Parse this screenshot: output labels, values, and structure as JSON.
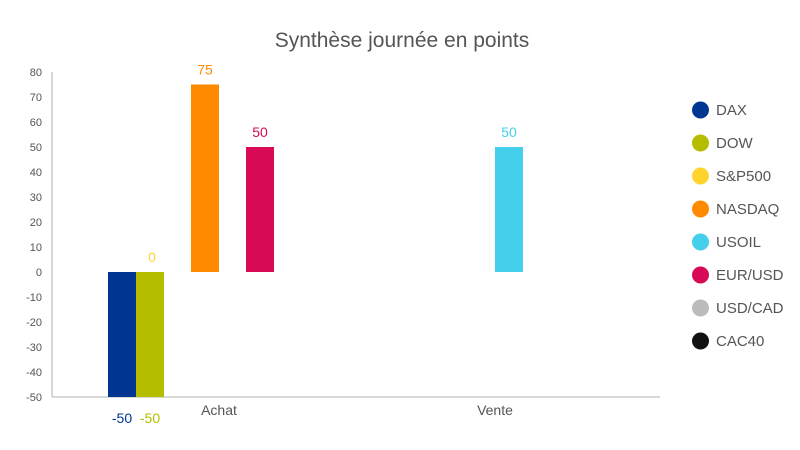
{
  "chart_data": {
    "type": "bar",
    "title": "Synthèse journée en points",
    "categories": [
      "Achat",
      "Vente"
    ],
    "ylim": [
      -50,
      80
    ],
    "yticks": [
      80,
      70,
      60,
      50,
      40,
      30,
      20,
      10,
      0,
      -10,
      -20,
      -30,
      -40,
      -50
    ],
    "grid": false,
    "legend_position": "right",
    "series": [
      {
        "name": "DAX",
        "color": "#003591",
        "values": [
          -50,
          null
        ]
      },
      {
        "name": "DOW",
        "color": "#B5BD00",
        "values": [
          -50,
          null
        ]
      },
      {
        "name": "S&P500",
        "color": "#FFD42E",
        "values": [
          0,
          null
        ]
      },
      {
        "name": "NASDAQ",
        "color": "#FF8A00",
        "values": [
          75,
          null
        ]
      },
      {
        "name": "USOIL",
        "color": "#44D0EA",
        "values": [
          null,
          50
        ]
      },
      {
        "name": "EUR/USD",
        "color": "#D90A55",
        "values": [
          50,
          null
        ]
      },
      {
        "name": "USD/CAD",
        "color": "#BBBBBB",
        "values": [
          null,
          null
        ]
      },
      {
        "name": "CAC40",
        "color": "#111111",
        "values": [
          null,
          null
        ]
      }
    ]
  }
}
